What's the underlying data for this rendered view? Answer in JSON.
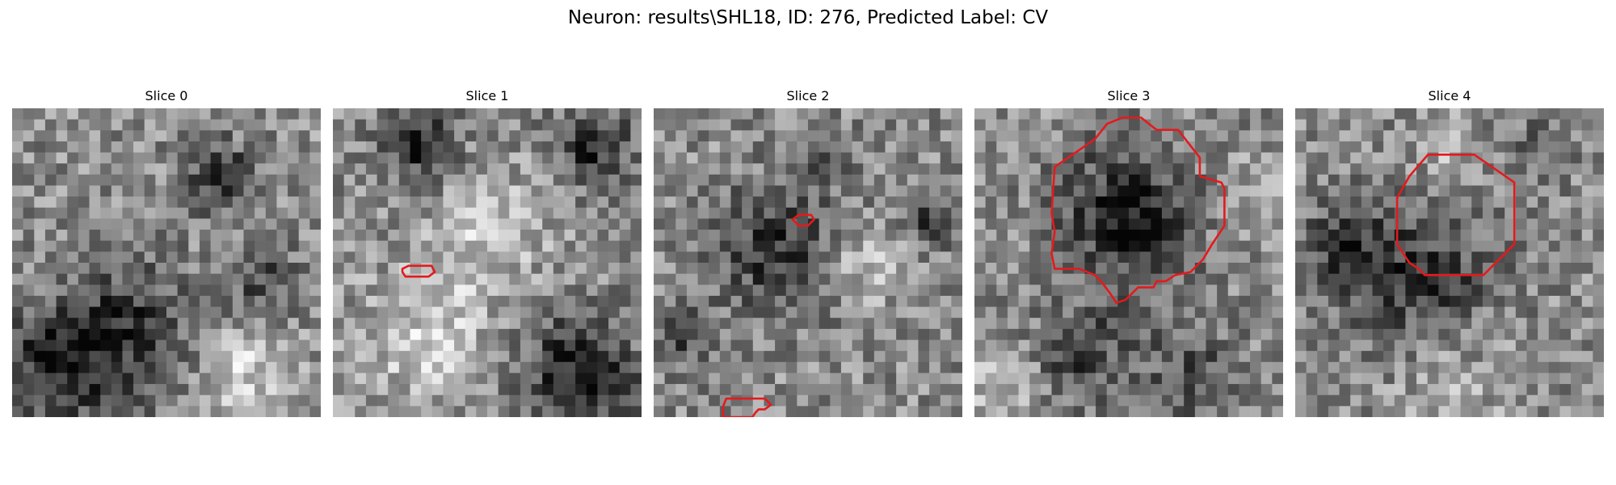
{
  "figure": {
    "title": "Neuron: results\\SHL18, ID: 276, Predicted Label: CV",
    "panels": [
      {
        "title": "Slice 0",
        "seed": 11,
        "has_roi": false
      },
      {
        "title": "Slice 1",
        "seed": 23,
        "has_roi": true
      },
      {
        "title": "Slice 2",
        "seed": 37,
        "has_roi": true
      },
      {
        "title": "Slice 3",
        "seed": 41,
        "has_roi": true
      },
      {
        "title": "Slice 4",
        "seed": 53,
        "has_roi": true
      }
    ],
    "image": {
      "grid_cells": 28,
      "colormap": "gray"
    },
    "roi_color": "#e41a1c"
  }
}
